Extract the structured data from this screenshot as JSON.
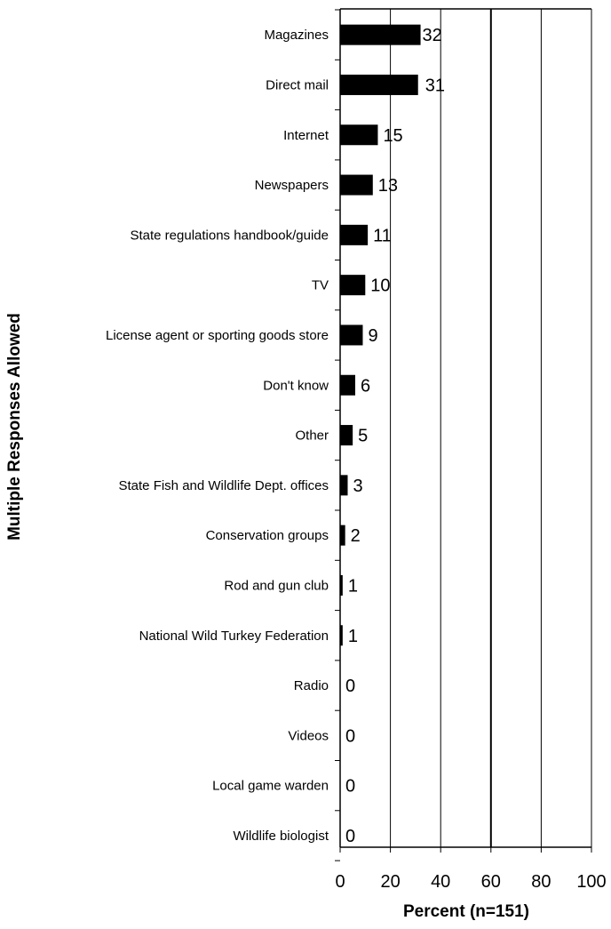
{
  "chart_data": {
    "type": "bar",
    "orientation": "horizontal",
    "xlabel": "Percent (n=151)",
    "ylabel": "Multiple Responses Allowed",
    "xlim": [
      0,
      100
    ],
    "x_ticks": [
      "0",
      "20",
      "40",
      "60",
      "80",
      "100"
    ],
    "grid": "vertical",
    "categories": [
      "Magazines",
      "Direct mail",
      "Internet",
      "Newspapers",
      "State regulations handbook/guide",
      "TV",
      "License agent or sporting goods store",
      "Don't know",
      "Other",
      "State Fish and Wildlife Dept. offices",
      "Conservation groups",
      "Rod and gun club",
      "National Wild Turkey Federation",
      "Radio",
      "Videos",
      "Local game warden",
      "Wildlife biologist"
    ],
    "values": [
      32,
      31,
      15,
      13,
      11,
      10,
      9,
      6,
      5,
      3,
      2,
      1,
      1,
      0,
      0,
      0,
      0
    ],
    "value_labels": [
      "32",
      "31",
      "15",
      "13",
      "11",
      "10",
      "9",
      "6",
      "5",
      "3",
      "2",
      "1",
      "1",
      "0",
      "0",
      "0",
      "0"
    ],
    "bar_color": "#000000"
  }
}
